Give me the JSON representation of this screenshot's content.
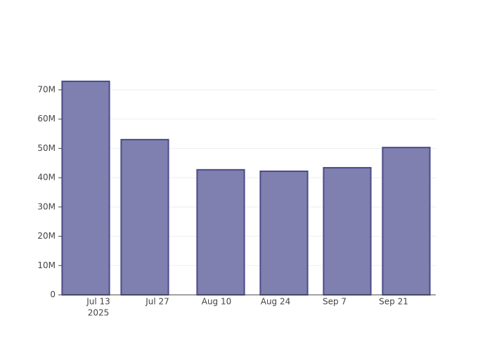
{
  "chart_data": {
    "type": "bar",
    "x": [
      "2025-07-10",
      "2025-07-24",
      "2025-08-11",
      "2025-08-26",
      "2025-09-10",
      "2025-09-24"
    ],
    "values": [
      72900000,
      53000000,
      42700000,
      42200000,
      43400000,
      50300000
    ],
    "color": "#7f7fb0",
    "edge_color": "#4b4b88",
    "xlim": [
      "2025-07-04T08:00",
      "2025-10-01T00:00"
    ],
    "xticks": [
      {
        "value": "2025-07-13",
        "label": "Jul 13"
      },
      {
        "value": "2025-07-27",
        "label": "Jul 27"
      },
      {
        "value": "2025-08-10",
        "label": "Aug 10"
      },
      {
        "value": "2025-08-24",
        "label": "Aug 24"
      },
      {
        "value": "2025-09-07",
        "label": "Sep 7"
      },
      {
        "value": "2025-09-21",
        "label": "Sep 21"
      }
    ],
    "x_year_label": "2025",
    "ylim": [
      0,
      76700000
    ],
    "yticks": [
      0,
      {
        "value": 10000000,
        "label": "10M"
      },
      {
        "value": 20000000,
        "label": "20M"
      },
      {
        "value": 30000000,
        "label": "30M"
      },
      {
        "value": 40000000,
        "label": "40M"
      },
      {
        "value": 50000000,
        "label": "50M"
      },
      {
        "value": 60000000,
        "label": "60M"
      },
      {
        "value": 70000000,
        "label": "70M"
      }
    ],
    "grid": true
  }
}
